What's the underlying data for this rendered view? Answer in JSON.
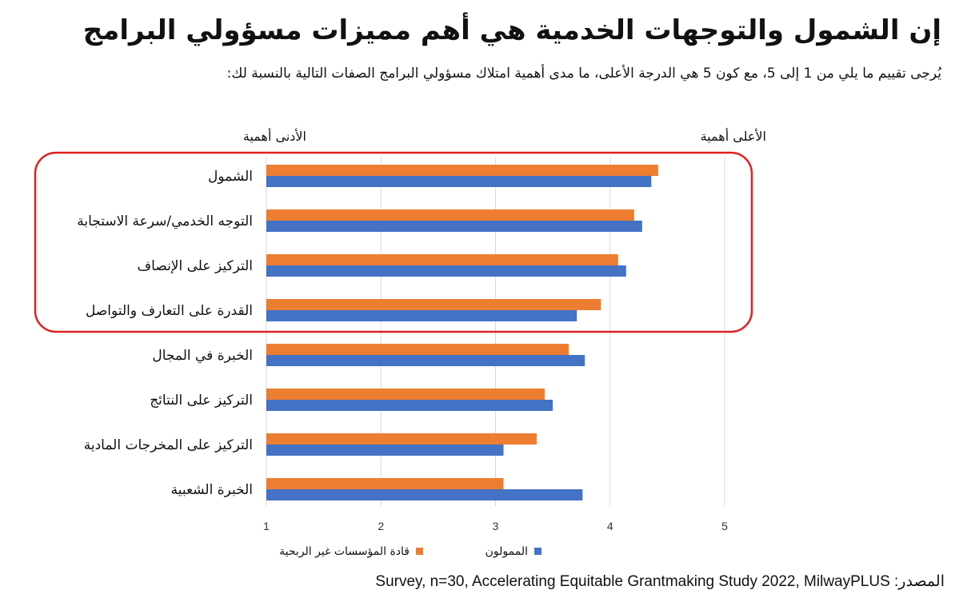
{
  "title": "إن الشمول والتوجهات الخدمية هي أهم مميزات مسؤولي البرامج",
  "subtitle": "يُرجى تقييم ما يلي من 1 إلى 5، مع كون 5 هي الدرجة الأعلى، ما مدى أهمية امتلاك مسؤولي البرامج الصفات التالية بالنسبة لك:",
  "source": "المصدر: Survey, n=30, Accelerating Equitable Grantmaking Study 2022, MilwayPLUS",
  "colors": {
    "orange": "#ED7D31",
    "blue": "#4472C4",
    "highlight": "#E02020",
    "grid": "#D9D9D9"
  },
  "chart_data": {
    "type": "bar",
    "orientation": "horizontal",
    "categories": [
      "الشمول",
      "التوجه الخدمي/سرعة الاستجابة",
      "التركيز على الإنصاف",
      "القدرة على التعارف والتواصل",
      "الخبرة في المجال",
      "التركيز على النتائج",
      "التركيز على المخرجات المادية",
      "الخبرة الشعبية"
    ],
    "series": [
      {
        "name": "قادة المؤسسات غير الربحية",
        "color": "#ED7D31",
        "values": [
          4.42,
          4.21,
          4.07,
          3.92,
          3.64,
          3.43,
          3.36,
          3.07
        ]
      },
      {
        "name": "الممولون",
        "color": "#4472C4",
        "values": [
          4.36,
          4.28,
          4.14,
          3.71,
          3.78,
          3.5,
          3.07,
          3.76
        ]
      }
    ],
    "xlim": [
      1,
      5
    ],
    "xticks": [
      "1",
      "2",
      "3",
      "4",
      "5"
    ],
    "grid": true,
    "legend": "bottom",
    "annotations": {
      "high": "الأعلى أهمية",
      "low": "الأدنى أهمية"
    },
    "highlight_count": 4
  }
}
